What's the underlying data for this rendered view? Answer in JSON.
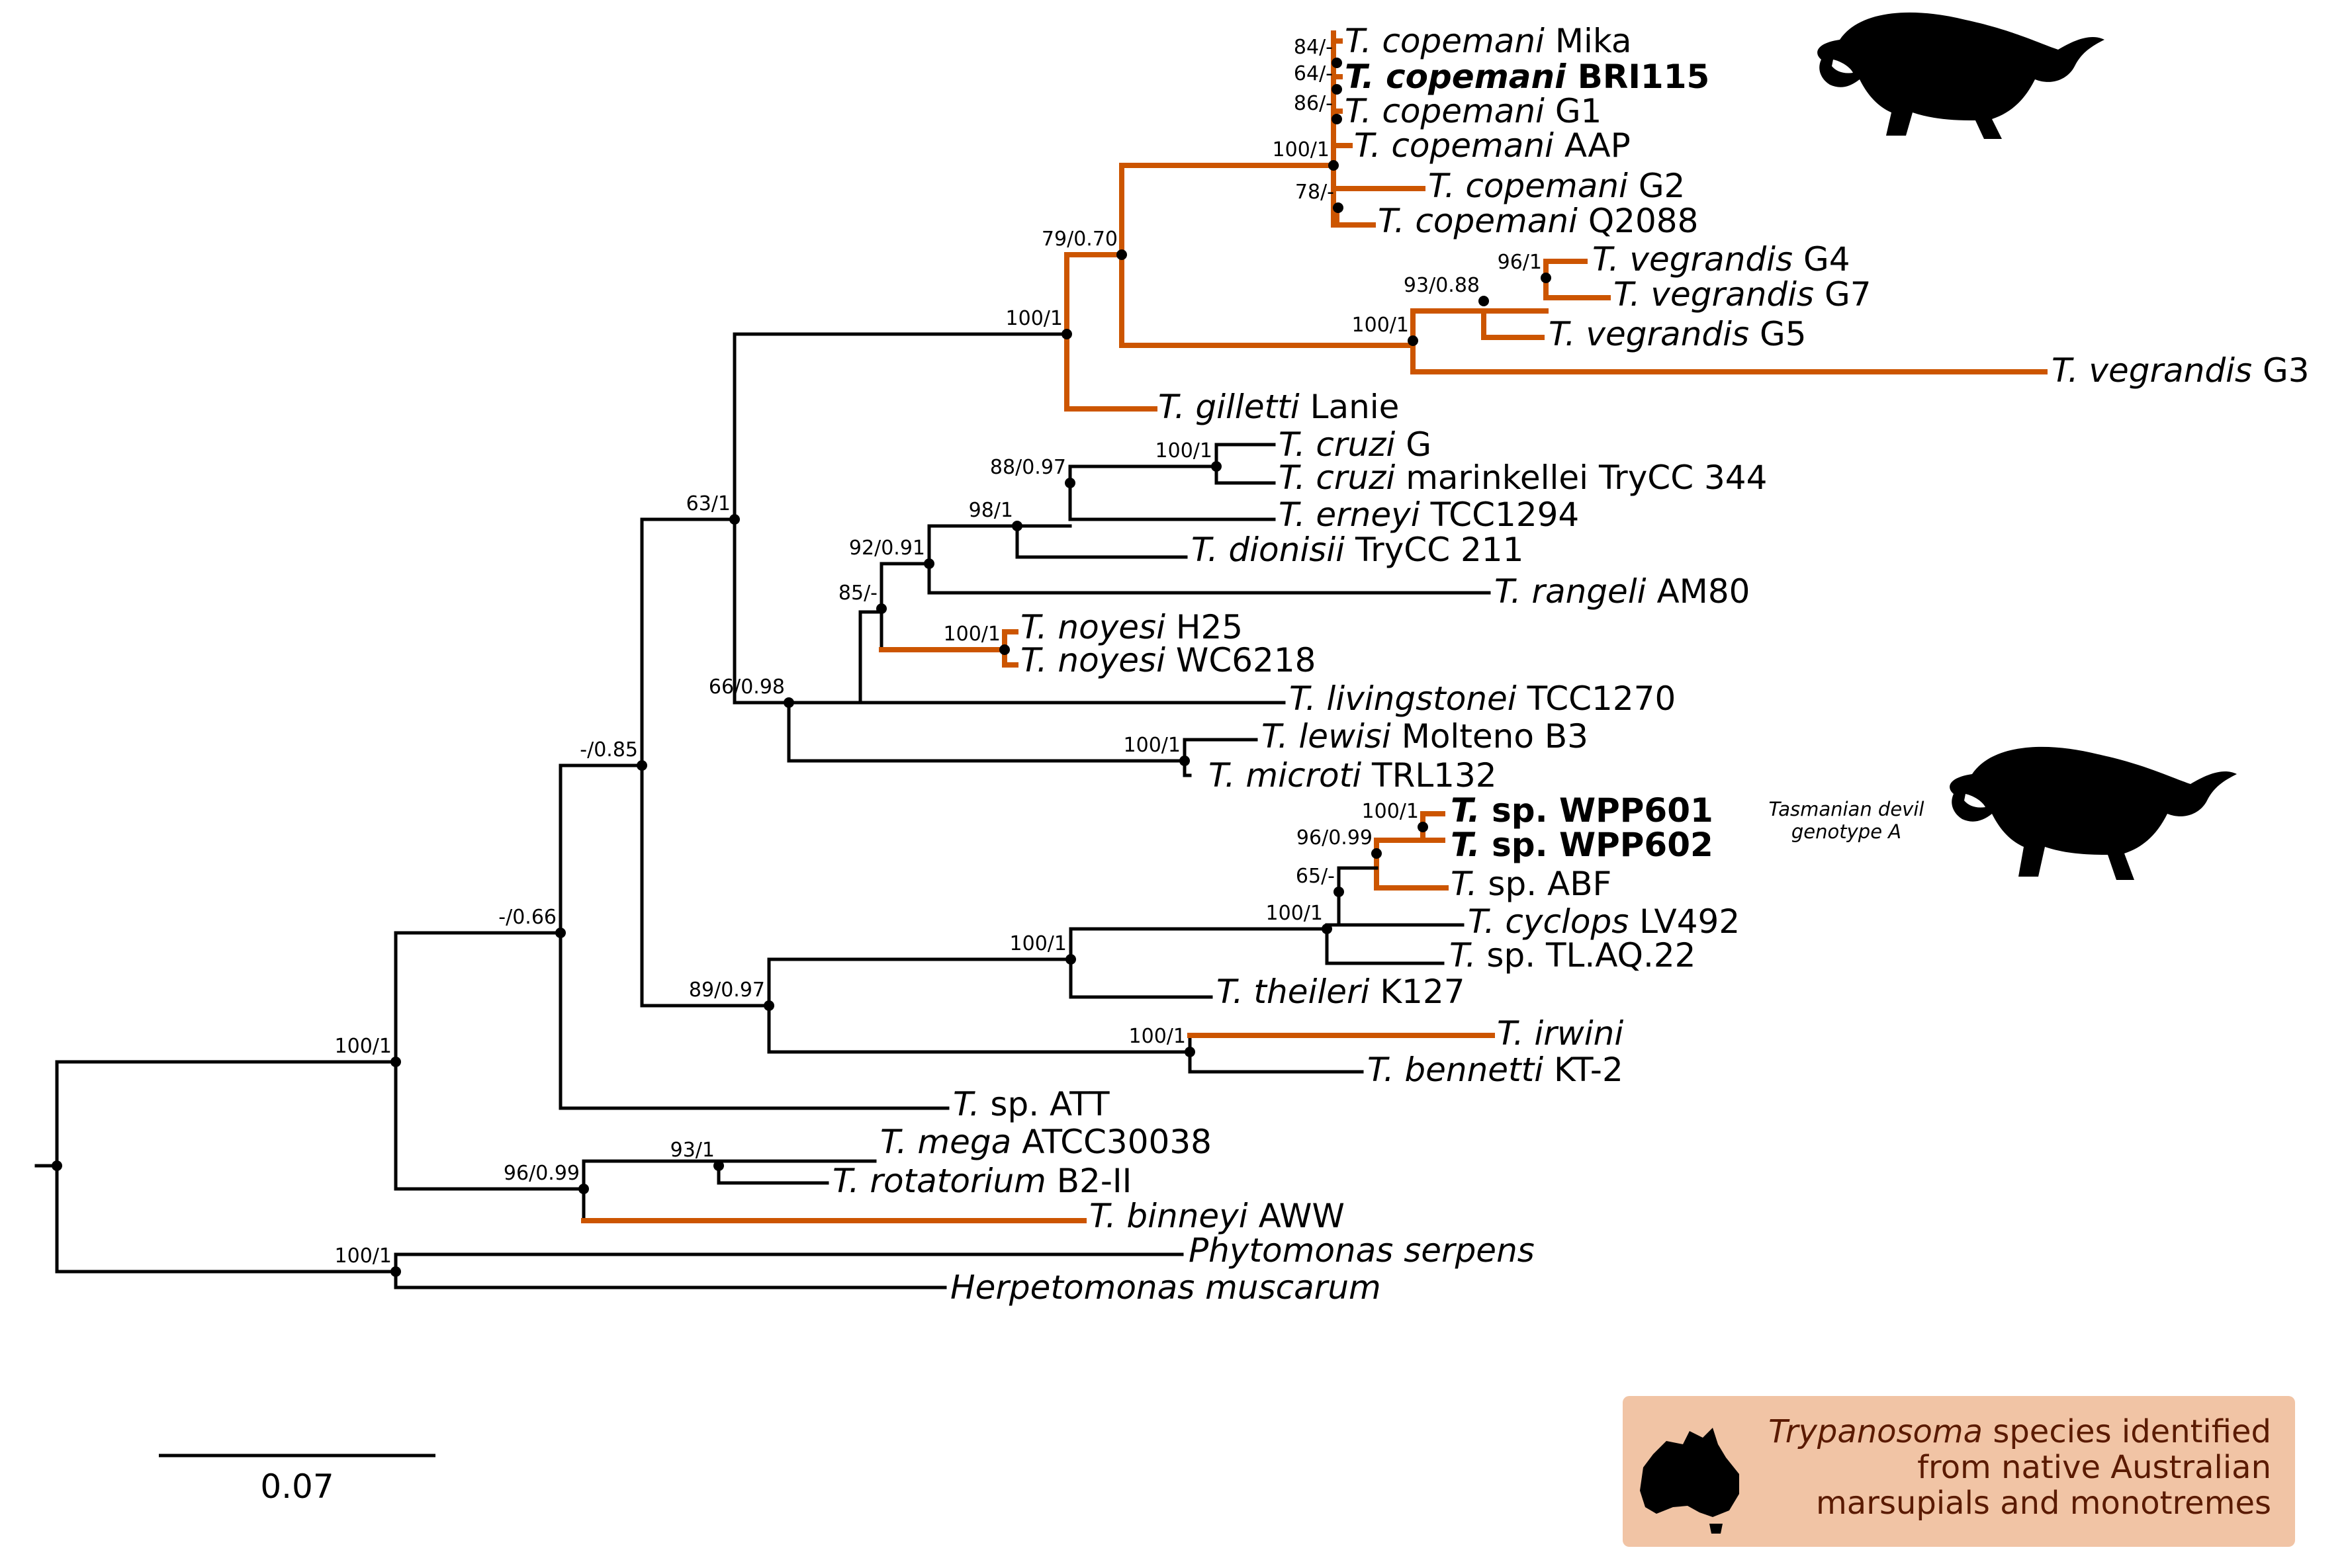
{
  "colors": {
    "australian": "#cc5500",
    "default": "#000000",
    "legend_bg": "#f1c4a5",
    "legend_text": "#5a1a00"
  },
  "tree": {
    "taxa": [
      {
        "id": "cop_mika",
        "genus": "T.",
        "species": "copemani",
        "strain": "Mika",
        "bold": false
      },
      {
        "id": "cop_bri",
        "genus": "T.",
        "species": "copemani",
        "strain": "BRI115",
        "bold": true
      },
      {
        "id": "cop_g1",
        "genus": "T.",
        "species": "copemani",
        "strain": "G1",
        "bold": false
      },
      {
        "id": "cop_aap",
        "genus": "T.",
        "species": "copemani",
        "strain": "AAP",
        "bold": false
      },
      {
        "id": "cop_g2",
        "genus": "T.",
        "species": "copemani",
        "strain": "G2",
        "bold": false
      },
      {
        "id": "cop_q",
        "genus": "T.",
        "species": "copemani",
        "strain": "Q2088",
        "bold": false
      },
      {
        "id": "veg_g4",
        "genus": "T.",
        "species": "vegrandis",
        "strain": "G4",
        "bold": false
      },
      {
        "id": "veg_g7",
        "genus": "T.",
        "species": "vegrandis",
        "strain": "G7",
        "bold": false
      },
      {
        "id": "veg_g5",
        "genus": "T.",
        "species": "vegrandis",
        "strain": "G5",
        "bold": false
      },
      {
        "id": "veg_g3",
        "genus": "T.",
        "species": "vegrandis",
        "strain": "G3",
        "bold": false
      },
      {
        "id": "gil",
        "genus": "T.",
        "species": "gilletti",
        "strain": "Lanie",
        "bold": false
      },
      {
        "id": "cruzi_g",
        "genus": "T.",
        "species": "cruzi",
        "strain": "G",
        "bold": false
      },
      {
        "id": "cruzi_m",
        "genus": "T.",
        "species": "cruzi",
        "strain": "marinkellei TryCC 344",
        "bold": false
      },
      {
        "id": "ern",
        "genus": "T.",
        "species": "erneyi",
        "strain": "TCC1294",
        "bold": false
      },
      {
        "id": "dio",
        "genus": "T.",
        "species": "dionisii",
        "strain": "TryCC 211",
        "bold": false
      },
      {
        "id": "ran",
        "genus": "T.",
        "species": "rangeli",
        "strain": "AM80",
        "bold": false
      },
      {
        "id": "noy_h25",
        "genus": "T.",
        "species": "noyesi",
        "strain": "H25",
        "bold": false
      },
      {
        "id": "noy_wc",
        "genus": "T.",
        "species": "noyesi",
        "strain": "WC6218",
        "bold": false
      },
      {
        "id": "liv",
        "genus": "T.",
        "species": "livingstonei",
        "strain": "TCC1270",
        "bold": false
      },
      {
        "id": "lew",
        "genus": "T.",
        "species": "lewisi",
        "strain": "Molteno B3",
        "bold": false
      },
      {
        "id": "mic",
        "genus": "T.",
        "species": "microti",
        "strain": "TRL132",
        "bold": false
      },
      {
        "id": "wpp601",
        "genus": "T.",
        "species": "",
        "strain": "sp. WPP601",
        "bold": true
      },
      {
        "id": "wpp602",
        "genus": "T.",
        "species": "",
        "strain": "sp. WPP602",
        "bold": true
      },
      {
        "id": "abf",
        "genus": "T.",
        "species": "",
        "strain": "sp. ABF",
        "bold": false
      },
      {
        "id": "cyc",
        "genus": "T.",
        "species": "cyclops",
        "strain": "LV492",
        "bold": false
      },
      {
        "id": "tlaq",
        "genus": "T.",
        "species": "",
        "strain": "sp. TL.AQ.22",
        "bold": false
      },
      {
        "id": "the",
        "genus": "T.",
        "species": "theileri",
        "strain": "K127",
        "bold": false
      },
      {
        "id": "irw",
        "genus": "T.",
        "species": "irwini",
        "strain": "",
        "bold": false
      },
      {
        "id": "ben",
        "genus": "T.",
        "species": "bennetti",
        "strain": "KT-2",
        "bold": false
      },
      {
        "id": "att",
        "genus": "T.",
        "species": "",
        "strain": "sp. ATT",
        "bold": false
      },
      {
        "id": "meg",
        "genus": "T.",
        "species": "mega",
        "strain": "ATCC30038",
        "bold": false
      },
      {
        "id": "rot",
        "genus": "T.",
        "species": "rotatorium",
        "strain": "B2-II",
        "bold": false
      },
      {
        "id": "bin",
        "genus": "T.",
        "species": "binneyi",
        "strain": "AWW",
        "bold": false
      },
      {
        "id": "phy",
        "genus": "",
        "species": "Phytomonas serpens",
        "strain": "",
        "bold": false
      },
      {
        "id": "her",
        "genus": "",
        "species": "Herpetomonas muscarum",
        "strain": "",
        "bold": false
      }
    ],
    "support": {
      "s_mika": "84/-",
      "s_bri": "64/-",
      "s_g1": "86/-",
      "s_cop": "100/1",
      "s_q": "78/-",
      "s_veg96": "96/1",
      "s_veg93": "93/0.88",
      "s_veg100": "100/1",
      "s_79": "79/0.70",
      "s_100t": "100/1",
      "s_63": "63/1",
      "s_cruzi": "100/1",
      "s_88": "88/0.97",
      "s_98": "98/1",
      "s_92": "92/0.91",
      "s_85": "85/-",
      "s_noy": "100/1",
      "s_66": "66/0.98",
      "s_lew": "100/1",
      "s_wpp": "100/1",
      "s_96wpp": "96/0.99",
      "s_65": "65/-",
      "s_100cyc": "100/1",
      "s_100the": "100/1",
      "s_89": "89/0.97",
      "s_irw": "100/1",
      "s_085": "-/0.85",
      "s_066": "-/0.66",
      "s_root100": "100/1",
      "s_93meg": "93/1",
      "s_96bin": "96/0.99",
      "s_phy": "100/1"
    }
  },
  "annotation": {
    "line1": "Tasmanian devil",
    "line2": "genotype A"
  },
  "scale": {
    "value": 0.07,
    "label": "0.07"
  },
  "legend": {
    "genus": "Trypanosoma",
    "line1_rest": " species identified",
    "line2": "from native Australian",
    "line3": "marsupials and monotremes"
  }
}
